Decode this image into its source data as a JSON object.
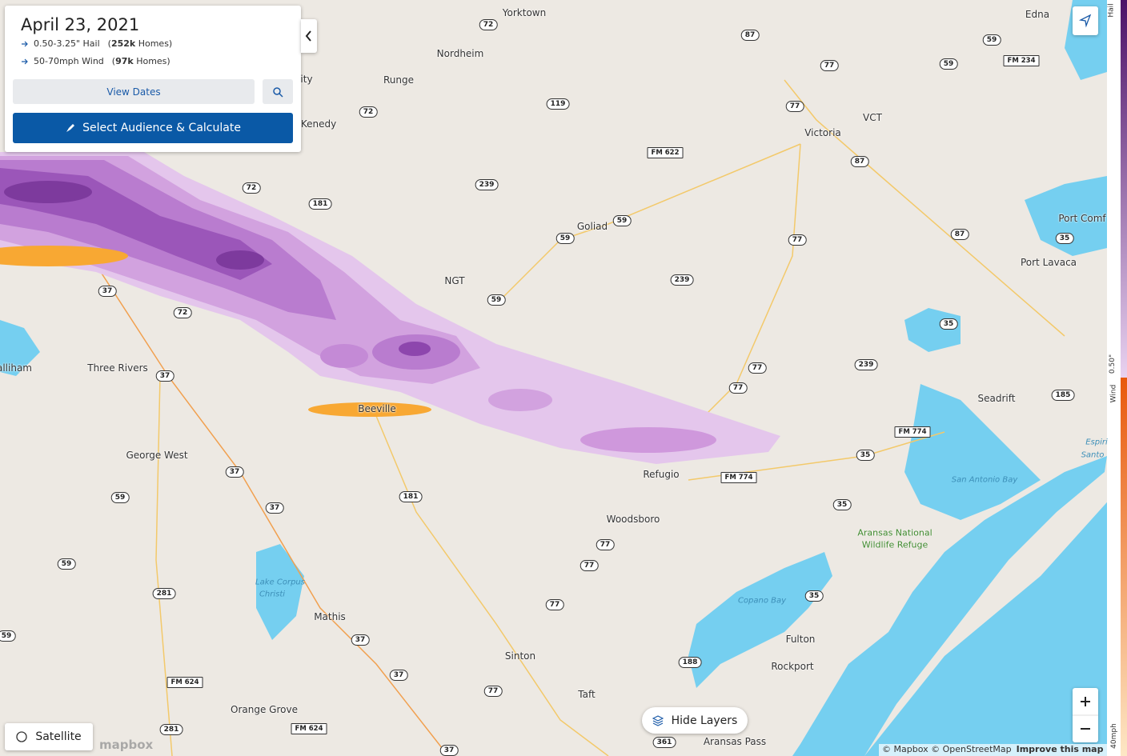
{
  "panel": {
    "date": "April 23, 2021",
    "events": [
      {
        "label": "0.50-3.25\" Hail",
        "homes": [
          "(",
          "252k",
          " Homes)"
        ]
      },
      {
        "label": "50-70mph Wind",
        "homes": [
          "(",
          "97k",
          " Homes)"
        ]
      }
    ],
    "view_dates": "View Dates",
    "calculate": "Select Audience & Calculate"
  },
  "map": {
    "places": [
      "Yorktown",
      "Nordheim",
      "Runge",
      "Kenedy",
      "Victoria",
      "Goliad",
      "Three Rivers",
      "Beeville",
      "George West",
      "Refugio",
      "Woodsboro",
      "Mathis",
      "Sinton",
      "Taft",
      "Orange Grove",
      "Fulton",
      "Rockport",
      "Aransas Pass",
      "Seadrift",
      "Port Lavaca",
      "Edna",
      "Port Comf",
      "NGT",
      "VCT",
      "ity",
      "alliham"
    ],
    "water_labels": [
      "San Antonio Bay",
      "Copano Bay",
      "Lake Corpus",
      "Christi",
      "Espiri",
      "Santo"
    ],
    "park_labels": [
      "Aransas National",
      "Wildlife Refuge"
    ],
    "shields": [
      "72",
      "87",
      "59",
      "59",
      "77",
      "FM 234",
      "119",
      "72",
      "77",
      "FM 622",
      "87",
      "239",
      "72",
      "181",
      "59",
      "59",
      "77",
      "35",
      "87",
      "239",
      "59",
      "37",
      "72",
      "35",
      "239",
      "77",
      "77",
      "37",
      "185",
      "FM 774",
      "35",
      "FM 774",
      "37",
      "59",
      "181",
      "37",
      "35",
      "77",
      "77",
      "59",
      "281",
      "35",
      "77",
      "59",
      "37",
      "188",
      "37",
      "FM 624",
      "77",
      "281",
      "FM 624",
      "361",
      "37"
    ]
  },
  "legend": {
    "hail": "Hail",
    "hail_min": "0.50\"",
    "wind": "Wind",
    "wind_min": "40mph"
  },
  "controls": {
    "satellite": "Satellite",
    "hide_layers": "Hide Layers",
    "logo": "mapbox",
    "attribution": "© Mapbox © OpenStreetMap",
    "improve": "Improve this map"
  }
}
